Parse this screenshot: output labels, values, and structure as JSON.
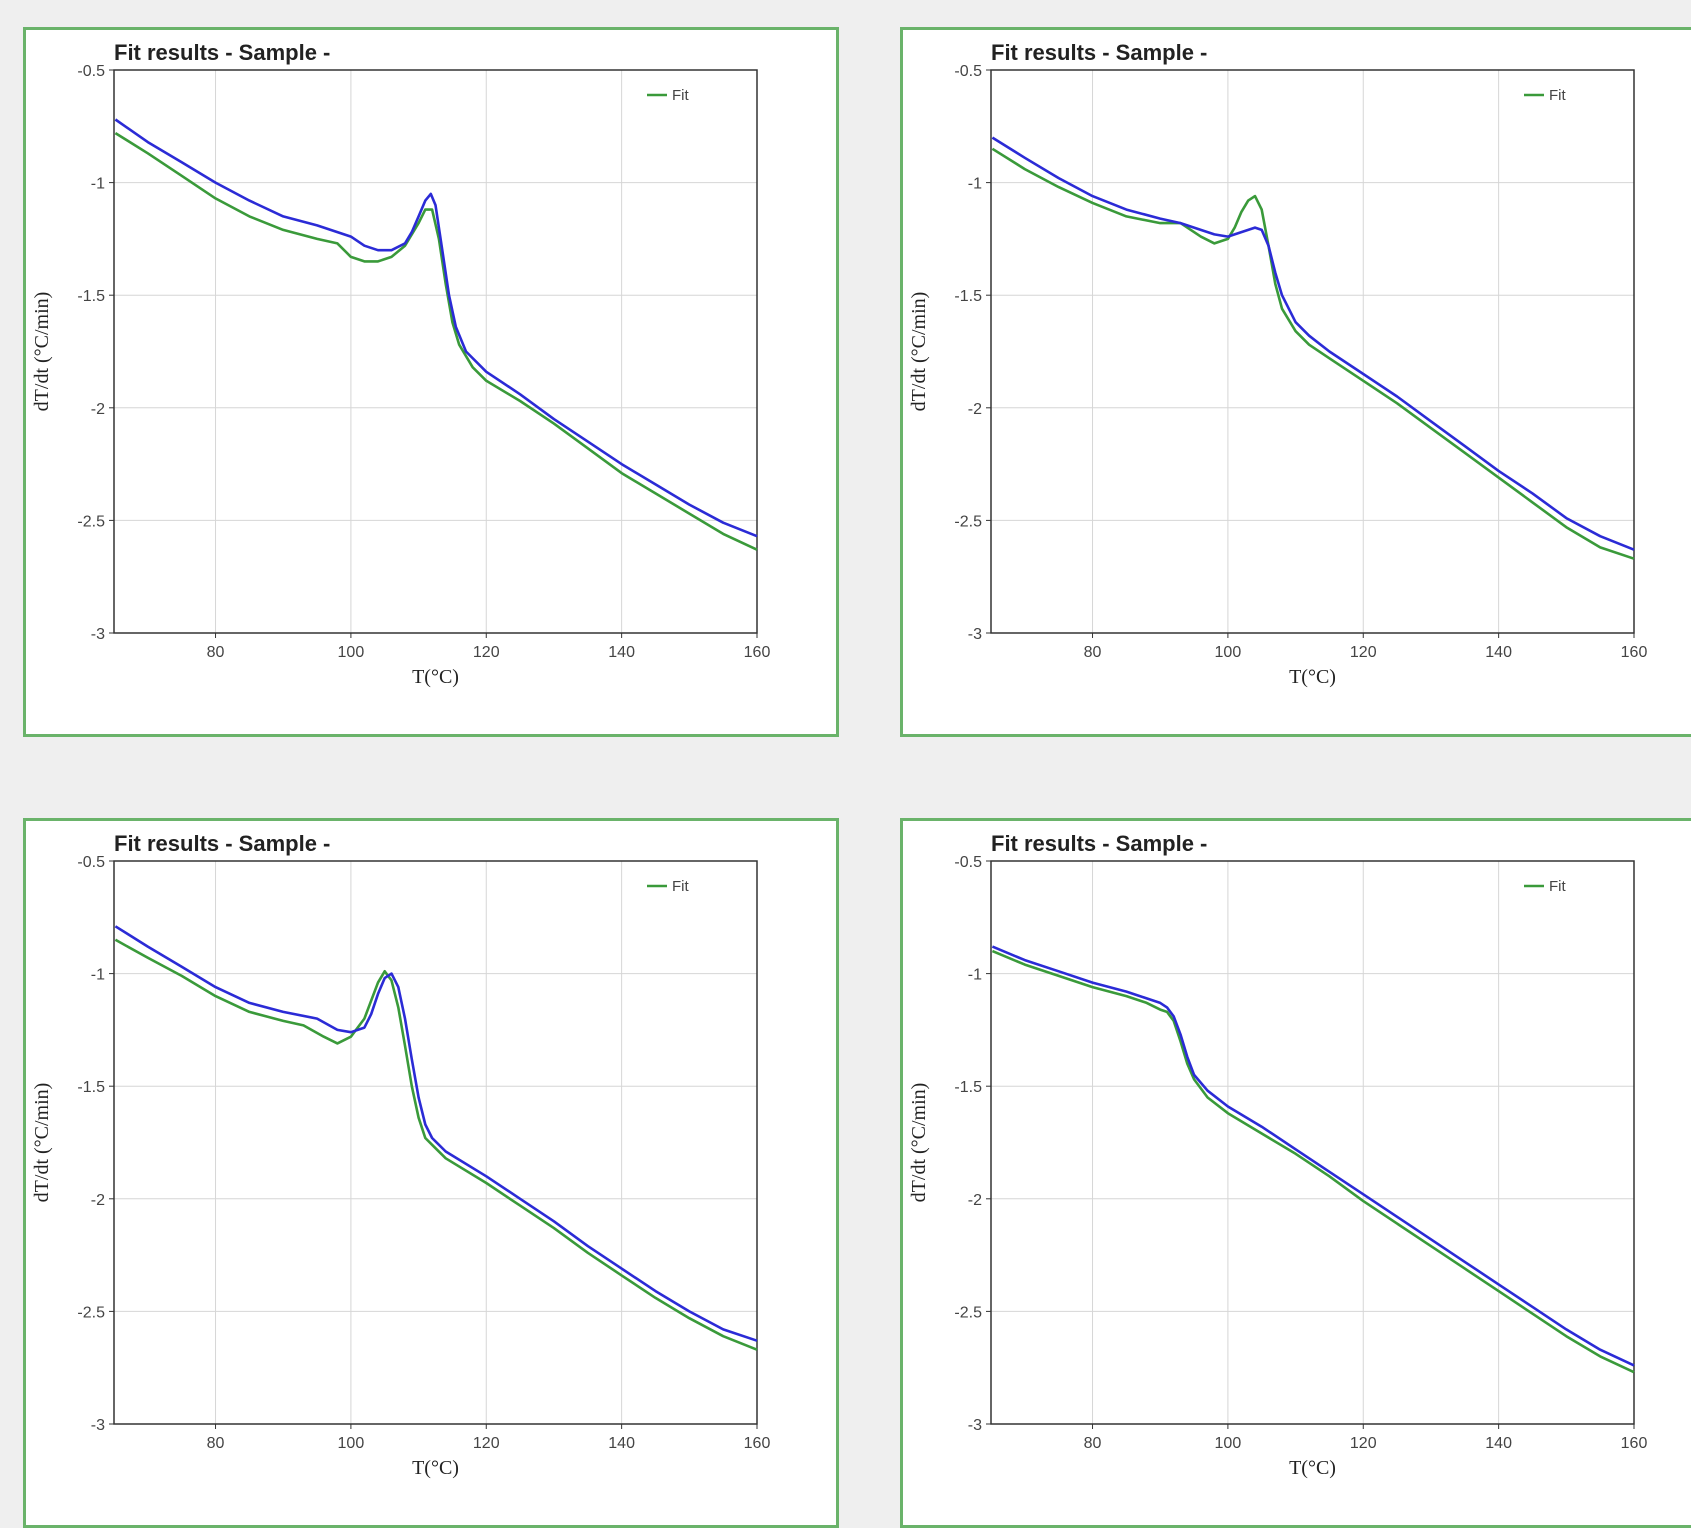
{
  "colors": {
    "fit": "#3a9a3a",
    "data": "#2b2bd6",
    "panel_border": "#6ab36a",
    "background": "#efefef"
  },
  "chart_data": [
    {
      "type": "line",
      "title": "Fit results - Sample -",
      "xlabel": "T(°C)",
      "ylabel": "dT/dt (°C/min)",
      "xlim": [
        65,
        160
      ],
      "ylim": [
        -3,
        -0.5
      ],
      "xticks": [
        80,
        100,
        120,
        140,
        160
      ],
      "yticks": [
        -3,
        -2.5,
        -2,
        -1.5,
        -1,
        -0.5
      ],
      "grid": true,
      "legend": {
        "position": "top-right",
        "entries": [
          "Fit"
        ]
      },
      "series": [
        {
          "name": "Fit",
          "color": "#3a9a3a",
          "x": [
            65.2,
            70,
            75,
            80,
            85,
            90,
            95,
            98,
            100,
            102,
            104,
            106,
            108,
            110,
            111,
            112,
            113,
            114,
            115,
            116,
            118,
            120,
            125,
            130,
            135,
            140,
            145,
            150,
            155,
            160
          ],
          "y": [
            -0.78,
            -0.87,
            -0.97,
            -1.07,
            -1.15,
            -1.21,
            -1.25,
            -1.27,
            -1.33,
            -1.35,
            -1.35,
            -1.33,
            -1.28,
            -1.18,
            -1.12,
            -1.12,
            -1.25,
            -1.45,
            -1.62,
            -1.72,
            -1.82,
            -1.88,
            -1.97,
            -2.07,
            -2.18,
            -2.29,
            -2.38,
            -2.47,
            -2.56,
            -2.63
          ]
        },
        {
          "color": "#2b2bd6",
          "x": [
            65.2,
            70,
            75,
            80,
            85,
            90,
            95,
            98,
            100,
            102,
            104,
            106,
            108,
            109,
            110,
            111,
            111.8,
            112.5,
            113.5,
            114.5,
            115.5,
            117,
            120,
            125,
            130,
            135,
            140,
            145,
            150,
            155,
            160
          ],
          "y": [
            -0.72,
            -0.82,
            -0.91,
            -1.0,
            -1.08,
            -1.15,
            -1.19,
            -1.22,
            -1.24,
            -1.28,
            -1.3,
            -1.3,
            -1.27,
            -1.22,
            -1.15,
            -1.08,
            -1.05,
            -1.1,
            -1.3,
            -1.5,
            -1.64,
            -1.75,
            -1.84,
            -1.94,
            -2.05,
            -2.15,
            -2.25,
            -2.34,
            -2.43,
            -2.51,
            -2.57
          ]
        }
      ]
    },
    {
      "type": "line",
      "title": "Fit results - Sample -",
      "xlabel": "T(°C)",
      "ylabel": "dT/dt (°C/min)",
      "xlim": [
        65,
        160
      ],
      "ylim": [
        -3,
        -0.5
      ],
      "xticks": [
        80,
        100,
        120,
        140,
        160
      ],
      "yticks": [
        -3,
        -2.5,
        -2,
        -1.5,
        -1,
        -0.5
      ],
      "grid": true,
      "legend": {
        "position": "top-right",
        "entries": [
          "Fit"
        ]
      },
      "series": [
        {
          "name": "Fit",
          "color": "#3a9a3a",
          "x": [
            65.2,
            70,
            75,
            80,
            85,
            90,
            93,
            96,
            98,
            100,
            101,
            102,
            103,
            104,
            105,
            106,
            107,
            108,
            110,
            112,
            115,
            120,
            125,
            130,
            135,
            140,
            145,
            150,
            155,
            160
          ],
          "y": [
            -0.85,
            -0.94,
            -1.02,
            -1.09,
            -1.15,
            -1.18,
            -1.18,
            -1.24,
            -1.27,
            -1.25,
            -1.2,
            -1.13,
            -1.08,
            -1.06,
            -1.12,
            -1.28,
            -1.45,
            -1.56,
            -1.66,
            -1.72,
            -1.78,
            -1.88,
            -1.98,
            -2.09,
            -2.2,
            -2.31,
            -2.42,
            -2.53,
            -2.62,
            -2.67
          ]
        },
        {
          "color": "#2b2bd6",
          "x": [
            65.2,
            70,
            75,
            80,
            85,
            90,
            93,
            96,
            98,
            100,
            102,
            104,
            105,
            106,
            107,
            108,
            110,
            112,
            115,
            120,
            125,
            130,
            135,
            140,
            145,
            150,
            155,
            160
          ],
          "y": [
            -0.8,
            -0.89,
            -0.98,
            -1.06,
            -1.12,
            -1.16,
            -1.18,
            -1.21,
            -1.23,
            -1.24,
            -1.22,
            -1.2,
            -1.21,
            -1.28,
            -1.4,
            -1.5,
            -1.62,
            -1.68,
            -1.75,
            -1.85,
            -1.95,
            -2.06,
            -2.17,
            -2.28,
            -2.38,
            -2.49,
            -2.57,
            -2.63
          ]
        }
      ]
    },
    {
      "type": "line",
      "title": "Fit results - Sample -",
      "xlabel": "T(°C)",
      "ylabel": "dT/dt (°C/min)",
      "xlim": [
        65,
        160
      ],
      "ylim": [
        -3,
        -0.5
      ],
      "xticks": [
        80,
        100,
        120,
        140,
        160
      ],
      "yticks": [
        -3,
        -2.5,
        -2,
        -1.5,
        -1,
        -0.5
      ],
      "grid": true,
      "legend": {
        "position": "top-right",
        "entries": [
          "Fit"
        ]
      },
      "series": [
        {
          "name": "Fit",
          "color": "#3a9a3a",
          "x": [
            65.2,
            70,
            75,
            80,
            85,
            90,
            93,
            96,
            98,
            100,
            102,
            103,
            104,
            105,
            106,
            107,
            108,
            109,
            110,
            111,
            112,
            114,
            120,
            125,
            130,
            135,
            140,
            145,
            150,
            155,
            160
          ],
          "y": [
            -0.85,
            -0.93,
            -1.01,
            -1.1,
            -1.17,
            -1.21,
            -1.23,
            -1.28,
            -1.31,
            -1.28,
            -1.2,
            -1.12,
            -1.04,
            -0.99,
            -1.03,
            -1.15,
            -1.32,
            -1.5,
            -1.64,
            -1.73,
            -1.76,
            -1.82,
            -1.93,
            -2.03,
            -2.13,
            -2.24,
            -2.34,
            -2.44,
            -2.53,
            -2.61,
            -2.67
          ]
        },
        {
          "color": "#2b2bd6",
          "x": [
            65.2,
            70,
            75,
            80,
            85,
            90,
            95,
            98,
            100,
            102,
            103,
            104,
            105,
            106,
            107,
            108,
            109,
            110,
            111,
            112,
            114,
            120,
            125,
            130,
            135,
            140,
            145,
            150,
            155,
            160
          ],
          "y": [
            -0.79,
            -0.88,
            -0.97,
            -1.06,
            -1.13,
            -1.17,
            -1.2,
            -1.25,
            -1.26,
            -1.24,
            -1.18,
            -1.09,
            -1.02,
            -1.0,
            -1.06,
            -1.2,
            -1.38,
            -1.55,
            -1.67,
            -1.73,
            -1.79,
            -1.9,
            -2.0,
            -2.1,
            -2.21,
            -2.31,
            -2.41,
            -2.5,
            -2.58,
            -2.63
          ]
        }
      ]
    },
    {
      "type": "line",
      "title": "Fit results - Sample -",
      "xlabel": "T(°C)",
      "ylabel": "dT/dt (°C/min)",
      "xlim": [
        65,
        160
      ],
      "ylim": [
        -3,
        -0.5
      ],
      "xticks": [
        80,
        100,
        120,
        140,
        160
      ],
      "yticks": [
        -3,
        -2.5,
        -2,
        -1.5,
        -1,
        -0.5
      ],
      "grid": true,
      "legend": {
        "position": "top-right",
        "entries": [
          "Fit"
        ]
      },
      "series": [
        {
          "name": "Fit",
          "color": "#3a9a3a",
          "x": [
            65.2,
            70,
            75,
            80,
            85,
            88,
            90,
            91,
            92,
            93,
            94,
            95,
            97,
            100,
            105,
            110,
            115,
            120,
            125,
            130,
            135,
            140,
            145,
            150,
            155,
            160
          ],
          "y": [
            -0.9,
            -0.96,
            -1.01,
            -1.06,
            -1.1,
            -1.13,
            -1.16,
            -1.17,
            -1.21,
            -1.3,
            -1.4,
            -1.47,
            -1.55,
            -1.62,
            -1.71,
            -1.8,
            -1.9,
            -2.01,
            -2.11,
            -2.21,
            -2.31,
            -2.41,
            -2.51,
            -2.61,
            -2.7,
            -2.77
          ]
        },
        {
          "color": "#2b2bd6",
          "x": [
            65.2,
            70,
            75,
            80,
            85,
            88,
            90,
            91,
            92,
            93,
            94,
            95,
            97,
            100,
            105,
            110,
            115,
            120,
            125,
            130,
            135,
            140,
            145,
            150,
            155,
            160
          ],
          "y": [
            -0.88,
            -0.94,
            -0.99,
            -1.04,
            -1.08,
            -1.11,
            -1.13,
            -1.15,
            -1.19,
            -1.27,
            -1.37,
            -1.45,
            -1.52,
            -1.59,
            -1.68,
            -1.78,
            -1.88,
            -1.98,
            -2.08,
            -2.18,
            -2.28,
            -2.38,
            -2.48,
            -2.58,
            -2.67,
            -2.74
          ]
        }
      ]
    }
  ]
}
